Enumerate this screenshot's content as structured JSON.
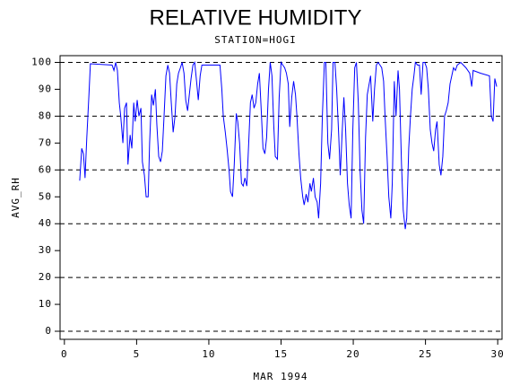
{
  "chart_data": {
    "type": "line",
    "title": "RELATIVE HUMIDITY",
    "subtitle": "STATION=HOGI",
    "xlabel": "MAR 1994",
    "ylabel": "AVG_RH",
    "xlim": [
      -0.3,
      30.3
    ],
    "xticks": [
      0,
      5,
      10,
      15,
      20,
      25,
      30
    ],
    "ylim": [
      -3,
      102.5
    ],
    "yticks": [
      0,
      10,
      20,
      30,
      40,
      50,
      60,
      70,
      80,
      90,
      100
    ],
    "grid_lines": [
      0,
      20,
      40,
      60,
      80,
      100
    ],
    "series": [
      {
        "name": "AVG_RH",
        "color": "#0000ff",
        "x": [
          1.06,
          1.2,
          1.32,
          1.43,
          1.55,
          1.7,
          1.8,
          3.3,
          3.43,
          3.55,
          3.67,
          3.8,
          3.9,
          4.05,
          4.17,
          4.3,
          4.4,
          4.55,
          4.67,
          4.8,
          4.9,
          5.04,
          5.16,
          5.3,
          5.4,
          5.54,
          5.66,
          5.8,
          5.9,
          6.04,
          6.16,
          6.3,
          6.4,
          6.53,
          6.66,
          6.78,
          6.9,
          7.03,
          7.16,
          7.28,
          7.4,
          7.53,
          7.66,
          7.78,
          7.9,
          8.03,
          8.15,
          8.28,
          8.4,
          8.53,
          8.65,
          8.77,
          8.9,
          9.02,
          9.15,
          9.27,
          9.4,
          9.52,
          10.77,
          10.9,
          11.0,
          11.14,
          11.26,
          11.4,
          11.5,
          11.64,
          11.76,
          11.9,
          12.0,
          12.13,
          12.26,
          12.38,
          12.5,
          12.63,
          12.76,
          12.88,
          13.0,
          13.13,
          13.25,
          13.38,
          13.5,
          13.63,
          13.75,
          13.88,
          14.0,
          14.13,
          14.25,
          14.37,
          14.5,
          14.6,
          14.75,
          14.87,
          15.0,
          15.12,
          15.25,
          15.37,
          15.5,
          15.6,
          15.74,
          15.87,
          16.0,
          16.1,
          16.24,
          16.36,
          16.5,
          16.6,
          16.74,
          16.86,
          17.0,
          17.1,
          17.24,
          17.36,
          17.5,
          17.6,
          17.74,
          17.86,
          18.0,
          18.1,
          18.24,
          18.36,
          18.5,
          18.6,
          18.73,
          18.85,
          19.0,
          19.1,
          19.23,
          19.35,
          19.47,
          19.6,
          19.72,
          19.85,
          19.97,
          20.1,
          20.22,
          20.35,
          20.47,
          20.6,
          20.72,
          20.85,
          20.97,
          21.1,
          21.2,
          21.35,
          21.47,
          21.6,
          21.72,
          21.85,
          21.97,
          22.1,
          22.2,
          22.34,
          22.46,
          22.6,
          22.7,
          22.84,
          22.96,
          23.1,
          23.2,
          23.34,
          23.46,
          23.6,
          23.7,
          23.84,
          23.96,
          24.08,
          24.2,
          24.3,
          24.45,
          24.58,
          24.7,
          24.83,
          24.95,
          25.08,
          25.2,
          25.33,
          25.45,
          25.57,
          25.7,
          25.8,
          25.95,
          26.07,
          26.2,
          26.32,
          26.44,
          26.57,
          26.7,
          26.82,
          26.94,
          27.07,
          27.2,
          27.44,
          27.8,
          28.06,
          28.2,
          28.3,
          28.8,
          29.43,
          29.56,
          29.68,
          29.8,
          29.93
        ],
        "values": [
          56,
          68,
          66,
          57,
          72,
          88,
          99.5,
          99,
          97,
          100,
          97,
          85,
          80,
          70,
          83,
          85,
          62,
          73,
          68,
          85,
          78,
          86,
          80,
          83,
          63,
          58,
          50,
          50,
          70,
          88,
          84,
          90,
          77,
          65,
          63,
          67,
          80,
          95,
          99,
          96,
          85,
          74,
          80,
          92,
          96,
          98,
          100,
          96,
          86,
          82,
          88,
          94,
          99,
          100,
          93,
          86,
          95,
          99,
          99,
          90,
          80,
          74,
          68,
          60,
          52,
          50,
          62,
          81,
          78,
          70,
          55,
          54,
          57,
          54,
          70,
          85,
          88,
          83,
          85,
          92,
          96,
          82,
          68,
          66,
          72,
          90,
          100,
          95,
          76,
          65,
          64,
          87,
          100,
          99,
          98,
          96,
          92,
          76,
          87,
          93,
          88,
          80,
          66,
          57,
          50,
          47,
          51,
          48,
          55,
          52,
          57,
          50,
          48,
          42,
          55,
          80,
          100,
          100,
          70,
          64,
          75,
          100,
          100,
          90,
          72,
          58,
          74,
          87,
          75,
          55,
          47,
          42,
          75,
          98,
          100,
          85,
          60,
          45,
          40,
          72,
          88,
          92,
          95,
          78,
          90,
          99,
          100,
          99,
          98,
          93,
          80,
          65,
          50,
          42,
          55,
          93,
          80,
          97,
          90,
          62,
          45,
          38,
          42,
          68,
          80,
          90,
          95,
          100,
          99,
          99,
          88,
          100,
          100,
          98,
          90,
          75,
          70,
          67,
          75,
          78,
          62,
          58,
          65,
          80,
          82,
          85,
          92,
          95,
          98,
          97,
          99,
          100,
          98,
          96,
          91,
          97,
          96,
          95,
          80,
          78,
          94,
          91
        ]
      }
    ]
  }
}
